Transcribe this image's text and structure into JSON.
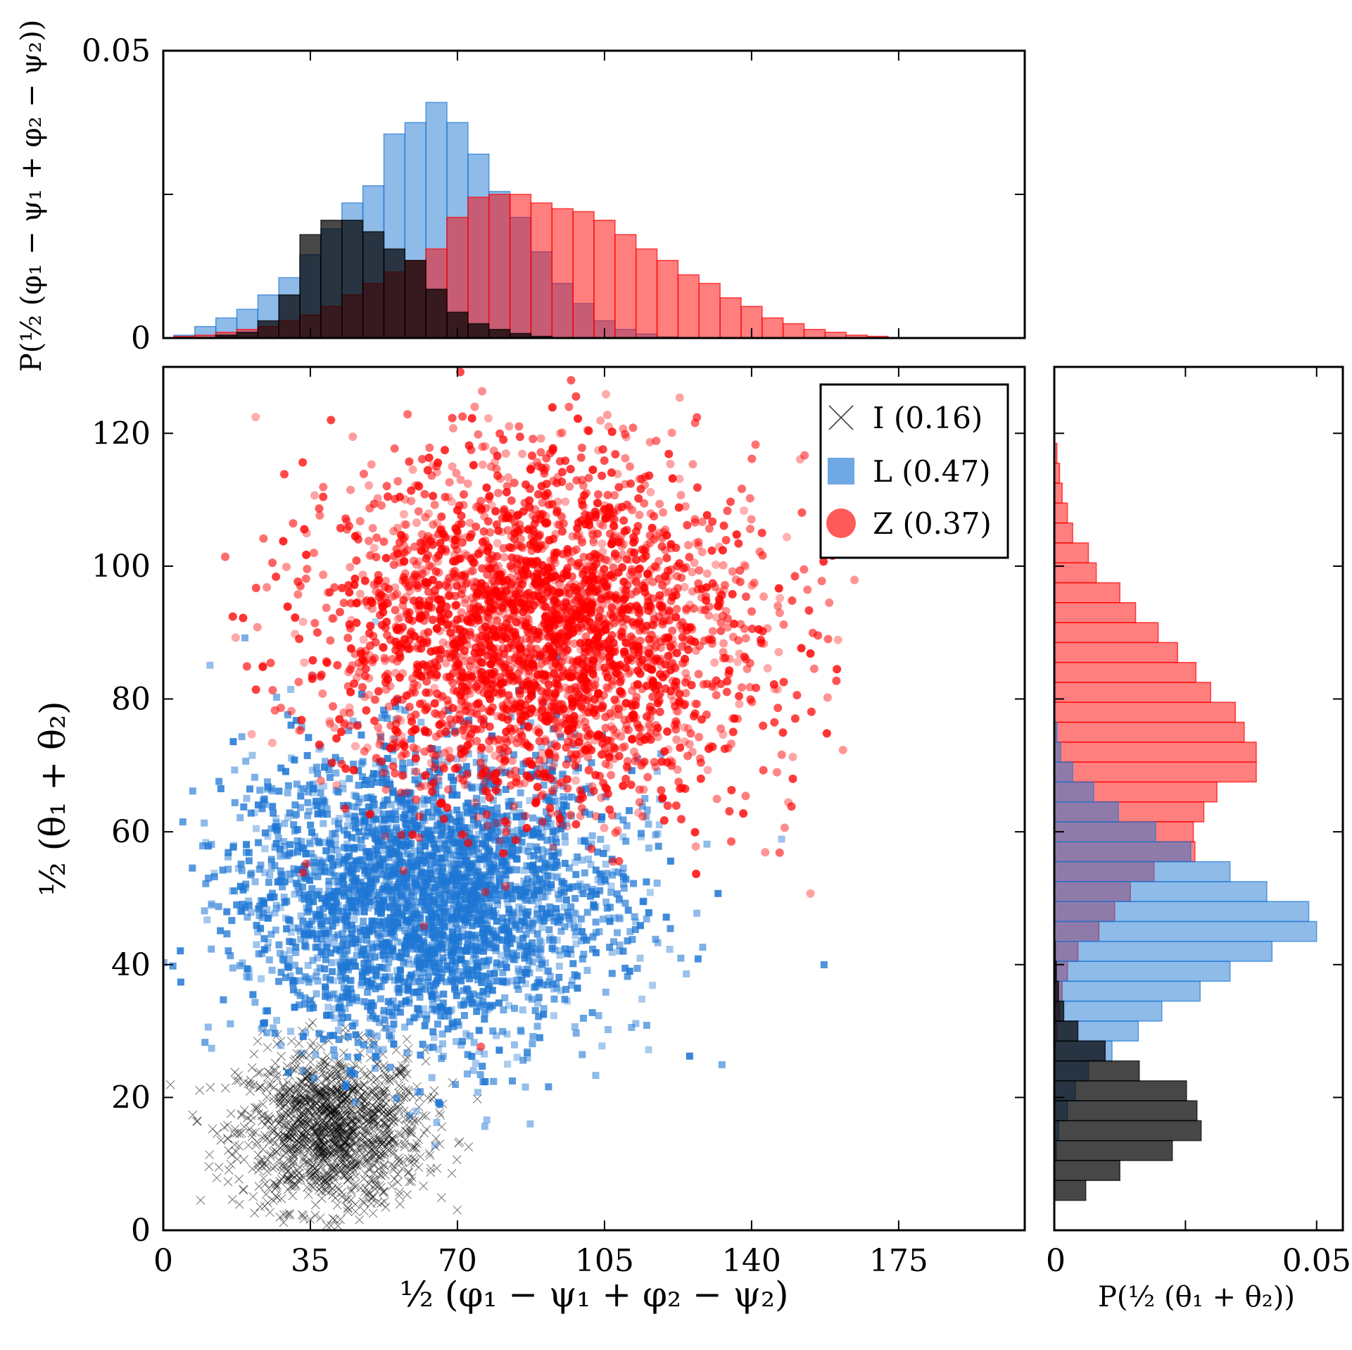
{
  "chart_data": [
    {
      "name": "joint-scatter",
      "type": "scatter",
      "xlabel": "½ (φ₁ − ψ₁ + φ₂ − ψ₂)",
      "ylabel": "½ (θ₁ + θ₂)",
      "xlim": [
        0,
        205
      ],
      "ylim": [
        0,
        130
      ],
      "xticks": [
        0,
        35,
        70,
        105,
        140,
        175
      ],
      "yticks": [
        0,
        20,
        40,
        60,
        80,
        100,
        120
      ],
      "legend_position": "top-right",
      "series": [
        {
          "name": "I (0.16)",
          "class": "I",
          "fraction": 0.16,
          "marker": "x",
          "color": "#000000",
          "center": [
            40,
            15
          ],
          "spread": [
            11,
            6
          ],
          "count": 1400
        },
        {
          "name": "L (0.47)",
          "class": "L",
          "fraction": 0.47,
          "marker": "square",
          "color": "#1f77d4",
          "center": [
            63,
            50
          ],
          "spread": [
            22,
            11
          ],
          "count": 3200
        },
        {
          "name": "Z (0.37)",
          "class": "Z",
          "fraction": 0.37,
          "marker": "circle",
          "color": "#ff0000",
          "center": [
            90,
            90
          ],
          "spread": [
            25,
            13
          ],
          "count": 3000
        }
      ]
    },
    {
      "name": "top-marginal-histogram",
      "type": "bar",
      "orientation": "vertical",
      "ylabel": "P(½ (φ₁ − ψ₁ + φ₂ − ψ₂))",
      "ylim": [
        0,
        0.05
      ],
      "yticks": [
        0,
        0.05
      ],
      "ytick_labels": [
        "0",
        "0.05"
      ],
      "bin_start": 2.5,
      "bin_width": 5,
      "series": [
        {
          "name": "L",
          "color": "#1f77d4",
          "values": [
            0.0005,
            0.002,
            0.0035,
            0.005,
            0.0075,
            0.0105,
            0.0145,
            0.019,
            0.0235,
            0.0265,
            0.0355,
            0.0375,
            0.041,
            0.0375,
            0.032,
            0.0255,
            0.021,
            0.015,
            0.0095,
            0.006,
            0.003,
            0.0015,
            0.0007,
            0.0002
          ]
        },
        {
          "name": "Z",
          "color": "#ff0000",
          "values": [
            0.0003,
            0.0005,
            0.001,
            0.0015,
            0.002,
            0.003,
            0.004,
            0.0055,
            0.0075,
            0.0095,
            0.0115,
            0.0135,
            0.0155,
            0.021,
            0.0245,
            0.025,
            0.025,
            0.0235,
            0.0225,
            0.022,
            0.0205,
            0.018,
            0.0155,
            0.0135,
            0.011,
            0.0095,
            0.007,
            0.0055,
            0.0035,
            0.0025,
            0.0015,
            0.001,
            0.0005,
            0.0003
          ]
        },
        {
          "name": "I",
          "color": "#000000",
          "values": [
            0,
            0,
            0.0005,
            0.001,
            0.003,
            0.0075,
            0.018,
            0.0205,
            0.0205,
            0.0185,
            0.0155,
            0.0135,
            0.0085,
            0.0045,
            0.0025,
            0.0015,
            0.0008,
            0.0003
          ]
        }
      ]
    },
    {
      "name": "right-marginal-histogram",
      "type": "bar",
      "orientation": "horizontal",
      "xlabel": "P(½ (θ₁ + θ₂))",
      "xlim": [
        0,
        0.055
      ],
      "xticks": [
        0,
        0.05
      ],
      "xtick_labels": [
        "0",
        "0.05"
      ],
      "bin_start": 1.5,
      "bin_width": 3,
      "series": [
        {
          "name": "Z",
          "color": "#ff0000",
          "values": [
            0,
            0,
            0,
            0,
            0,
            0,
            0,
            0,
            0.0002,
            0.0005,
            0.001,
            0.0015,
            0.0025,
            0.0045,
            0.0085,
            0.0115,
            0.0145,
            0.019,
            0.0268,
            0.0265,
            0.0285,
            0.031,
            0.0385,
            0.0385,
            0.0362,
            0.0345,
            0.0298,
            0.027,
            0.0235,
            0.0198,
            0.0155,
            0.0125,
            0.008,
            0.0065,
            0.0035,
            0.0025,
            0.0015,
            0.001,
            0.0005
          ]
        },
        {
          "name": "L",
          "color": "#1f77d4",
          "values": [
            0,
            0,
            0,
            0.0004,
            0.0008,
            0.0025,
            0.004,
            0.0065,
            0.011,
            0.016,
            0.0205,
            0.0278,
            0.0335,
            0.0415,
            0.05,
            0.0485,
            0.0405,
            0.0335,
            0.026,
            0.0193,
            0.0122,
            0.0075,
            0.0035,
            0.0012,
            0.0005
          ]
        },
        {
          "name": "I",
          "color": "#000000",
          "values": [
            0,
            0.006,
            0.0125,
            0.0225,
            0.028,
            0.0272,
            0.0252,
            0.0162,
            0.0097,
            0.0045,
            0.0018,
            0.0008,
            0.0004,
            0.0002
          ]
        }
      ]
    }
  ]
}
